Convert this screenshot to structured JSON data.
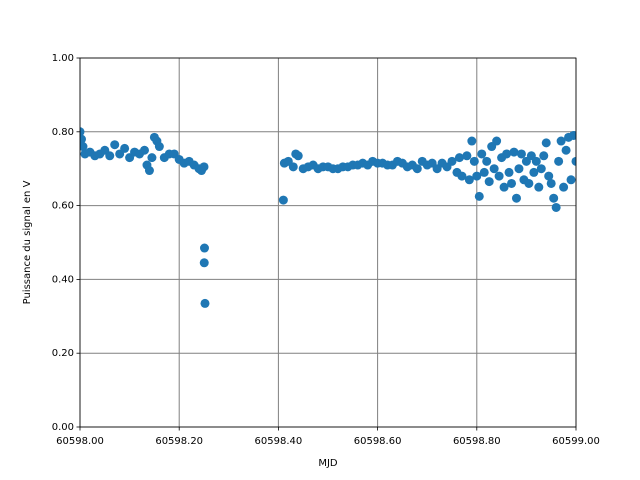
{
  "chart_data": {
    "type": "scatter",
    "xlabel": "MJD",
    "ylabel": "Puissance du signal en V",
    "xlim": [
      60598.0,
      60599.0
    ],
    "xticks": [
      {
        "value": 60598.0,
        "label": "60598.00"
      },
      {
        "value": 60598.2,
        "label": "60598.20"
      },
      {
        "value": 60598.4,
        "label": "60598.40"
      },
      {
        "value": 60598.6,
        "label": "60598.60"
      },
      {
        "value": 60598.8,
        "label": "60598.80"
      },
      {
        "value": 60599.0,
        "label": "60599.00"
      }
    ],
    "ylim": [
      0,
      1
    ],
    "yticks": [
      {
        "value": 0,
        "label": "0.00"
      },
      {
        "value": 0.2,
        "label": "0.20"
      },
      {
        "value": 0.4,
        "label": "0.40"
      },
      {
        "value": 0.6,
        "label": "0.60"
      },
      {
        "value": 0.8,
        "label": "0.80"
      },
      {
        "value": 1,
        "label": "1.00"
      }
    ],
    "grid": true,
    "grid_color": "#808080",
    "series": [
      {
        "color": "#1f77b4",
        "x": [
          60598.0,
          60598.003,
          60598.006,
          60598.01,
          60598.02,
          60598.03,
          60598.04,
          60598.05,
          60598.06,
          60598.07,
          60598.08,
          60598.09,
          60598.1,
          60598.11,
          60598.12,
          60598.13,
          60598.135,
          60598.14,
          60598.145,
          60598.15,
          60598.155,
          60598.16,
          60598.17,
          60598.18,
          60598.19,
          60598.2,
          60598.21,
          60598.22,
          60598.23,
          60598.24,
          60598.245,
          60598.25,
          60598.251,
          60598.2505,
          60598.252,
          60598.41,
          60598.412,
          60598.42,
          60598.43,
          60598.435,
          60598.44,
          60598.45,
          60598.46,
          60598.47,
          60598.48,
          60598.49,
          60598.5,
          60598.51,
          60598.52,
          60598.53,
          60598.54,
          60598.55,
          60598.56,
          60598.57,
          60598.58,
          60598.59,
          60598.6,
          60598.61,
          60598.62,
          60598.63,
          60598.64,
          60598.65,
          60598.66,
          60598.67,
          60598.68,
          60598.69,
          60598.7,
          60598.71,
          60598.72,
          60598.73,
          60598.74,
          60598.75,
          60598.76,
          60598.765,
          60598.77,
          60598.78,
          60598.785,
          60598.79,
          60598.795,
          60598.8,
          60598.805,
          60598.81,
          60598.815,
          60598.82,
          60598.825,
          60598.83,
          60598.835,
          60598.84,
          60598.845,
          60598.85,
          60598.855,
          60598.86,
          60598.865,
          60598.87,
          60598.875,
          60598.88,
          60598.885,
          60598.89,
          60598.895,
          60598.9,
          60598.905,
          60598.91,
          60598.915,
          60598.92,
          60598.925,
          60598.93,
          60598.935,
          60598.94,
          60598.945,
          60598.95,
          60598.955,
          60598.96,
          60598.965,
          60598.97,
          60598.975,
          60598.98,
          60598.985,
          60598.99,
          60598.995,
          60599.0
        ],
        "values": [
          0.8,
          0.78,
          0.76,
          0.74,
          0.745,
          0.735,
          0.74,
          0.75,
          0.735,
          0.765,
          0.74,
          0.755,
          0.73,
          0.745,
          0.74,
          0.75,
          0.71,
          0.695,
          0.73,
          0.785,
          0.775,
          0.76,
          0.73,
          0.74,
          0.74,
          0.725,
          0.715,
          0.72,
          0.71,
          0.7,
          0.695,
          0.705,
          0.485,
          0.445,
          0.335,
          0.615,
          0.715,
          0.72,
          0.705,
          0.74,
          0.735,
          0.7,
          0.705,
          0.71,
          0.7,
          0.705,
          0.705,
          0.7,
          0.7,
          0.705,
          0.705,
          0.71,
          0.71,
          0.715,
          0.71,
          0.72,
          0.715,
          0.715,
          0.71,
          0.71,
          0.72,
          0.715,
          0.705,
          0.71,
          0.7,
          0.72,
          0.71,
          0.715,
          0.7,
          0.715,
          0.705,
          0.72,
          0.69,
          0.73,
          0.68,
          0.735,
          0.67,
          0.775,
          0.72,
          0.68,
          0.625,
          0.74,
          0.69,
          0.72,
          0.665,
          0.76,
          0.7,
          0.775,
          0.68,
          0.73,
          0.65,
          0.74,
          0.69,
          0.66,
          0.745,
          0.62,
          0.7,
          0.74,
          0.67,
          0.72,
          0.66,
          0.735,
          0.69,
          0.72,
          0.65,
          0.7,
          0.735,
          0.77,
          0.68,
          0.66,
          0.62,
          0.595,
          0.72,
          0.775,
          0.65,
          0.75,
          0.785,
          0.67,
          0.79,
          0.72
        ]
      }
    ]
  }
}
